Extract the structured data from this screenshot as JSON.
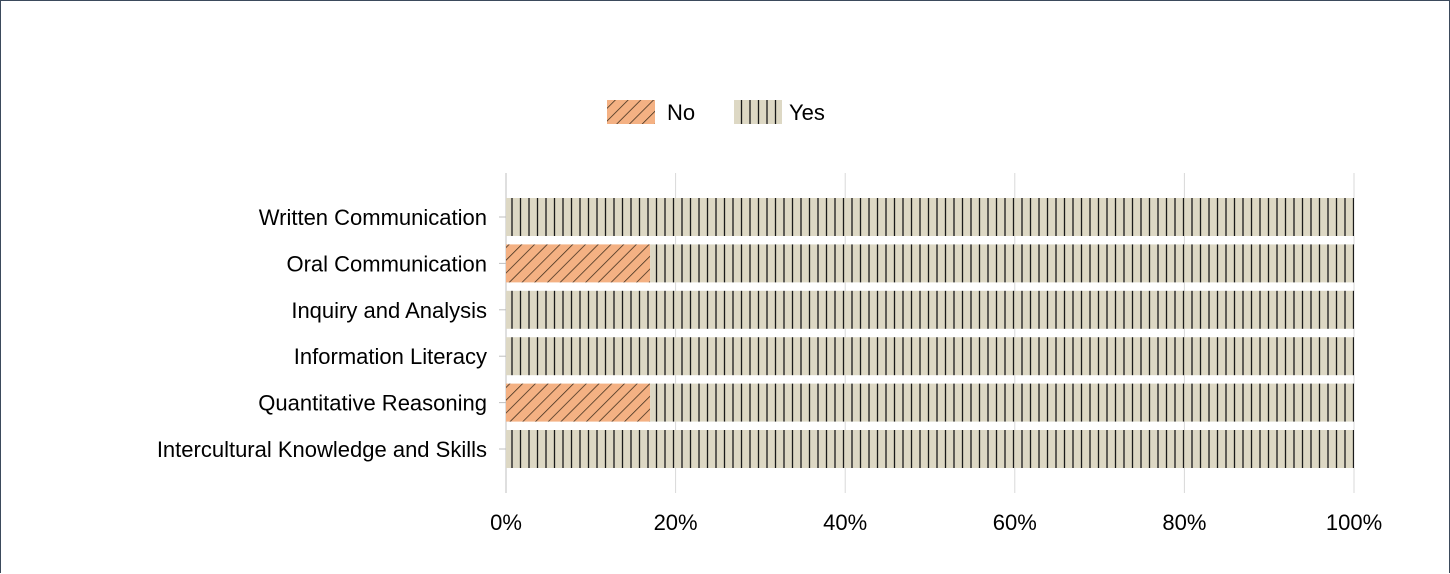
{
  "chart_data": {
    "type": "bar",
    "orientation": "horizontal",
    "stacked": true,
    "percent_stacked": true,
    "categories": [
      "Written Communication",
      "Oral Communication",
      "Inquiry and Analysis",
      "Information Literacy",
      "Quantitative Reasoning",
      "Intercultural Knowledge and Skills"
    ],
    "series": [
      {
        "name": "No",
        "values": [
          0,
          17,
          0,
          0,
          17,
          0
        ],
        "color": "#f4b183",
        "pattern": "diagonal-hatch"
      },
      {
        "name": "Yes",
        "values": [
          100,
          83,
          100,
          100,
          83,
          100
        ],
        "color": "#ddd8c4",
        "pattern": "vertical-lines"
      }
    ],
    "xlim": [
      0,
      100
    ],
    "xticks": [
      0,
      20,
      40,
      60,
      80,
      100
    ],
    "xtick_labels": [
      "0%",
      "20%",
      "40%",
      "60%",
      "80%",
      "100%"
    ],
    "grid": "vertical",
    "legend": "top-center",
    "title": "",
    "xlabel": "",
    "ylabel": ""
  }
}
